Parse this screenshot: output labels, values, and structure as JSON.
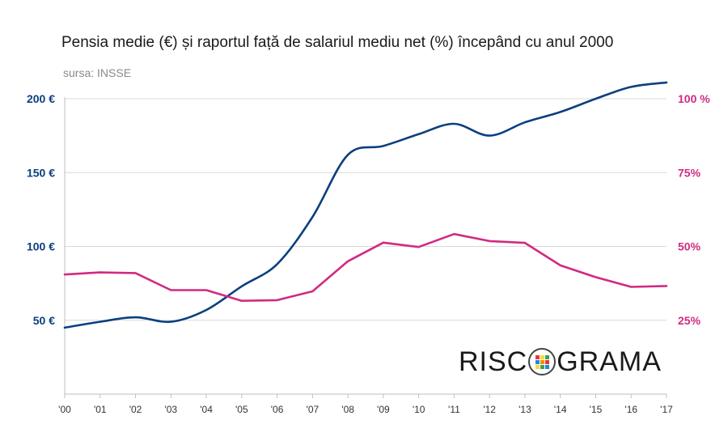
{
  "title": "Pensia medie (€) și raportul față de salariul mediu net (%) începând cu anul 2000",
  "subtitle": "sursa: INSSE",
  "logo": {
    "left": "RISC",
    "right": "GRAMA",
    "icon": "rubik-cube-icon"
  },
  "colors": {
    "pension": "#0b3f7f",
    "ratio": "#d12a82",
    "grid": "#d9d9d9",
    "axis": "#bfbfbf"
  },
  "chart_data": {
    "type": "line",
    "title": "Pensia medie (€) și raportul față de salariul mediu net (%) începând cu anul 2000",
    "categories": [
      "'00",
      "'01",
      "'02",
      "'03",
      "'04",
      "'05",
      "'06",
      "'07",
      "'08",
      "'09",
      "'10",
      "'11",
      "'12",
      "'13",
      "'14",
      "'15",
      "'16",
      "'17"
    ],
    "y_left": {
      "ticks": [
        50,
        100,
        150,
        200
      ],
      "tick_labels": [
        "50 €",
        "100 €",
        "150 €",
        "200 €"
      ],
      "range": [
        0,
        200
      ]
    },
    "y_right": {
      "ticks": [
        25,
        50,
        75,
        100
      ],
      "tick_labels": [
        "25%",
        "50%",
        "75%",
        "100 %"
      ],
      "range": [
        0,
        100
      ]
    },
    "grid": true,
    "series": [
      {
        "axis": "left",
        "smooth": true,
        "color": "#0b3f7f",
        "values": [
          45,
          49,
          52,
          49,
          57,
          73,
          88,
          120,
          162,
          168,
          176,
          183,
          175,
          184,
          191,
          200,
          208,
          211
        ]
      },
      {
        "axis": "right",
        "smooth": false,
        "color": "#d12a82",
        "values": [
          40.5,
          41.2,
          41.0,
          35.2,
          35.2,
          31.6,
          31.8,
          34.8,
          45.0,
          51.3,
          49.8,
          54.2,
          51.8,
          51.2,
          43.6,
          39.6,
          36.3,
          36.6
        ]
      }
    ]
  }
}
